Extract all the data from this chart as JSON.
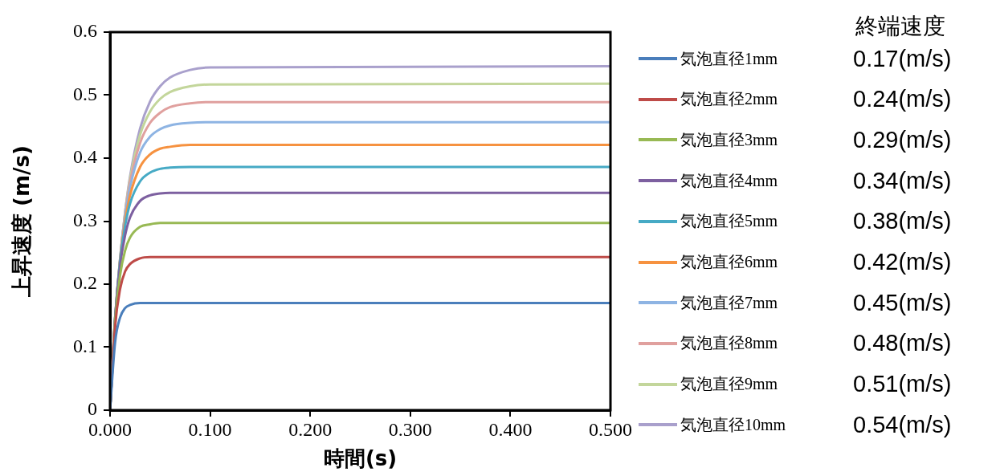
{
  "chart_data": {
    "type": "line",
    "xlabel": "時間(s)",
    "ylabel": "上昇速度 (m/s)",
    "x": [
      0,
      0.005,
      0.01,
      0.015,
      0.02,
      0.03,
      0.04,
      0.05,
      0.06,
      0.08,
      0.1,
      0.5
    ],
    "xlim": [
      0,
      0.5
    ],
    "xticks": [
      {
        "value": 0,
        "label": "0.000"
      },
      {
        "value": 0.1,
        "label": "0.100"
      },
      {
        "value": 0.2,
        "label": "0.200"
      },
      {
        "value": 0.3,
        "label": "0.300"
      },
      {
        "value": 0.4,
        "label": "0.400"
      },
      {
        "value": 0.5,
        "label": "0.500"
      }
    ],
    "ylim": [
      0,
      0.6
    ],
    "yticks": [
      0,
      0.1,
      0.2,
      0.3,
      0.4,
      0.5,
      0.6
    ],
    "grid": false,
    "legend": "right",
    "marker": "none",
    "line_style": "solid",
    "series": [
      {
        "name": "気泡直径1mm",
        "color": "#4a7ebb",
        "values": [
          0,
          0.107,
          0.147,
          0.162,
          0.167,
          0.17,
          0.17,
          0.17,
          0.17,
          0.17,
          0.17,
          0.17
        ]
      },
      {
        "name": "気泡直径2mm",
        "color": "#be4b48",
        "values": [
          0,
          0.132,
          0.192,
          0.22,
          0.232,
          0.241,
          0.243,
          0.243,
          0.243,
          0.243,
          0.243,
          0.243
        ]
      },
      {
        "name": "気泡直径3mm",
        "color": "#98b954",
        "values": [
          0,
          0.14,
          0.214,
          0.253,
          0.274,
          0.291,
          0.295,
          0.297,
          0.297,
          0.297,
          0.297,
          0.297
        ]
      },
      {
        "name": "気泡直径4mm",
        "color": "#7d60a0",
        "values": [
          0,
          0.145,
          0.229,
          0.277,
          0.306,
          0.332,
          0.341,
          0.344,
          0.345,
          0.345,
          0.345,
          0.345
        ]
      },
      {
        "name": "気泡直径5mm",
        "color": "#46aac5",
        "values": [
          0,
          0.145,
          0.236,
          0.292,
          0.328,
          0.363,
          0.377,
          0.383,
          0.385,
          0.386,
          0.386,
          0.386
        ]
      },
      {
        "name": "気泡直径6mm",
        "color": "#f69240",
        "values": [
          0,
          0.144,
          0.238,
          0.3,
          0.341,
          0.386,
          0.406,
          0.415,
          0.418,
          0.421,
          0.421,
          0.421
        ]
      },
      {
        "name": "気泡直径7mm",
        "color": "#8eb4e3",
        "values": [
          0,
          0.142,
          0.24,
          0.308,
          0.354,
          0.409,
          0.434,
          0.446,
          0.452,
          0.456,
          0.457,
          0.457
        ]
      },
      {
        "name": "気泡直径8mm",
        "color": "#e0a09e",
        "values": [
          0,
          0.14,
          0.24,
          0.311,
          0.362,
          0.424,
          0.456,
          0.472,
          0.481,
          0.487,
          0.489,
          0.489
        ]
      },
      {
        "name": "気泡直径9mm",
        "color": "#c3d69b",
        "values": [
          0,
          0.138,
          0.239,
          0.313,
          0.367,
          0.437,
          0.474,
          0.494,
          0.505,
          0.514,
          0.517,
          0.518
        ]
      },
      {
        "name": "気泡直径10mm",
        "color": "#a9a0cc",
        "values": [
          0,
          0.135,
          0.236,
          0.313,
          0.371,
          0.447,
          0.49,
          0.514,
          0.528,
          0.54,
          0.544,
          0.546
        ]
      }
    ],
    "annotations": [
      "終端速度",
      "0.17(m/s)",
      "0.24(m/s)",
      "0.29(m/s)",
      "0.34(m/s)",
      "0.38(m/s)",
      "0.42(m/s)",
      "0.45(m/s)",
      "0.48(m/s)",
      "0.51(m/s)",
      "0.54(m/s)"
    ]
  }
}
